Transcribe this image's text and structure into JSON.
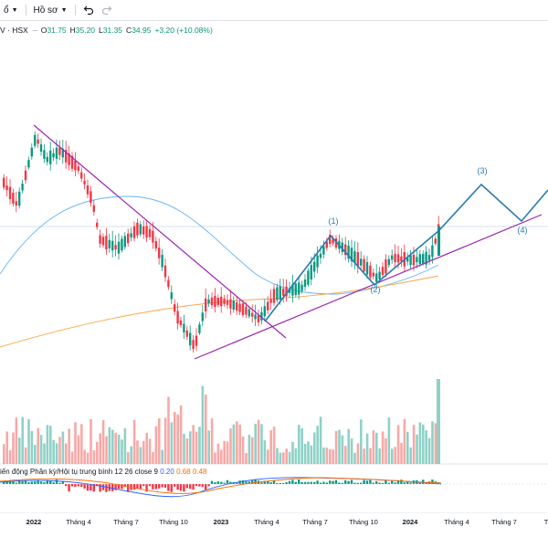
{
  "toolbar": {
    "item1_label": "ổ",
    "profile_label": "Hồ sơ",
    "undo_icon": "undo-icon",
    "redo_icon": "redo-icon"
  },
  "legend": {
    "symbol_suffix": "V · HSX",
    "open_key": "O",
    "open": "31.75",
    "high_key": "H",
    "high": "35.20",
    "low_key": "L",
    "low": "31.35",
    "close_key": "C",
    "close": "34.95",
    "change": "+3.20 (+10.08%)"
  },
  "wave_labels": [
    "(1)",
    "(2)",
    "(3)",
    "(4)"
  ],
  "macd": {
    "title": "iến động Phân kỳ/Hội tụ trung bình 12 26 close 9",
    "v1": "0.20",
    "v2": "0.68",
    "v3": "0.48"
  },
  "x_axis": [
    "2022",
    "Tháng 4",
    "Tháng 7",
    "Tháng 10",
    "2023",
    "Tháng 4",
    "Tháng 7",
    "Tháng 10",
    "2024",
    "Tháng 4",
    "Tháng 7",
    "T"
  ],
  "colors": {
    "up": "#089981",
    "down": "#f23645",
    "vol_up": "#8fd1c7",
    "vol_down": "#f7a9a7",
    "trendline": "#9c27b0",
    "wave": "#2a7ab0",
    "ma_blue": "#64b5f6",
    "ma_orange": "#f7a64a",
    "macd_line": "#2962ff",
    "signal_line": "#ff6d00"
  },
  "chart_data": {
    "type": "candlestick",
    "wave_points": [
      {
        "label": "(1)"
      },
      {
        "label": "(2)"
      },
      {
        "label": "(3)"
      },
      {
        "label": "(4)"
      }
    ]
  }
}
